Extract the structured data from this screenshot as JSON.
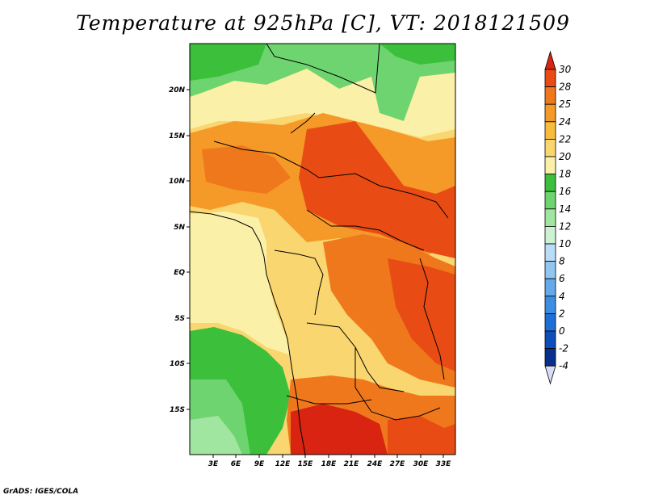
{
  "title": "Temperature at 925hPa [C], VT: 2018121509",
  "credit": "GrADS: IGES/COLA",
  "map": {
    "region": "Central Africa",
    "lon_range": [
      0,
      34.5
    ],
    "lat_range": [
      -20,
      24.5
    ],
    "lon_ticks": [
      "3E",
      "6E",
      "9E",
      "12E",
      "15E",
      "18E",
      "21E",
      "24E",
      "27E",
      "30E",
      "33E"
    ],
    "lat_ticks": [
      "20N",
      "15N",
      "10N",
      "5N",
      "EQ",
      "5S",
      "10S",
      "15S"
    ]
  },
  "colorbar": {
    "levels": [
      "30",
      "28",
      "25",
      "24",
      "22",
      "20",
      "18",
      "16",
      "14",
      "12",
      "10",
      "8",
      "6",
      "4",
      "2",
      "0",
      "-2",
      "-4"
    ],
    "colors": [
      "#d82410",
      "#e84c14",
      "#f0781c",
      "#f59a28",
      "#f8bc3c",
      "#f9d670",
      "#fbf0a8",
      "#3cc03c",
      "#6ed470",
      "#a0e6a0",
      "#cdf2d2",
      "#b8ddf6",
      "#90c6f0",
      "#64aaea",
      "#3c8ee2",
      "#1d6fd6",
      "#0c4fba",
      "#082f8a",
      "#0a1660"
    ]
  }
}
